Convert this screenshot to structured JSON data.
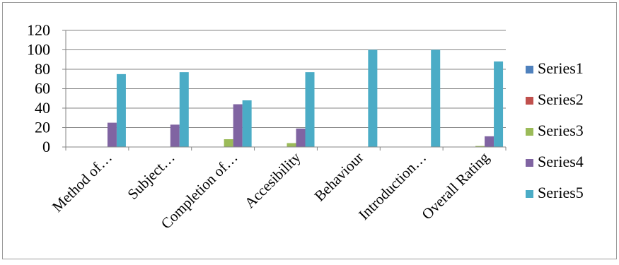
{
  "chart_data": {
    "type": "bar",
    "categories": [
      "Method of…",
      "Subject…",
      "Completion of…",
      "Accesibility",
      "Behaviour",
      "Introduction…",
      "Overall Rating"
    ],
    "series": [
      {
        "name": "Series1",
        "color": "#4f81bd",
        "values": [
          0,
          0,
          0,
          0,
          0,
          0,
          0
        ]
      },
      {
        "name": "Series2",
        "color": "#c0504d",
        "values": [
          0,
          0,
          0,
          0,
          0,
          0,
          0
        ]
      },
      {
        "name": "Series3",
        "color": "#9bbb59",
        "values": [
          0,
          0,
          8,
          4,
          0,
          0,
          1
        ]
      },
      {
        "name": "Series4",
        "color": "#8064a2",
        "values": [
          25,
          23,
          44,
          19,
          0,
          0,
          11
        ]
      },
      {
        "name": "Series5",
        "color": "#4bacc6",
        "values": [
          75,
          77,
          48,
          77,
          100,
          100,
          88
        ]
      }
    ],
    "yticks": [
      "0",
      "20",
      "40",
      "60",
      "80",
      "100",
      "120"
    ],
    "ylim": [
      0,
      120
    ],
    "grid": true,
    "legend_position": "right",
    "title": "",
    "xlabel": "",
    "ylabel": ""
  }
}
